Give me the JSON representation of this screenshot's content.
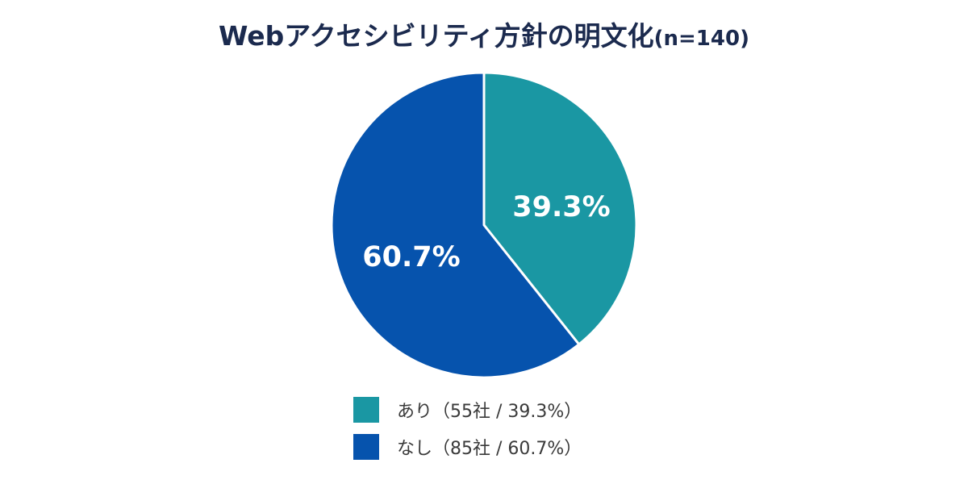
{
  "chart_data": {
    "type": "pie",
    "title": "Webアクセシビリティ方針の明文化",
    "subtitle": "(n=140)",
    "slices": [
      {
        "label": "あり",
        "count": 55,
        "count_unit": "社",
        "value": 39.3,
        "value_label": "39.3%",
        "legend_label": "あり（55社 / 39.3%）",
        "color": "#1a97a3"
      },
      {
        "label": "なし",
        "count": 85,
        "count_unit": "社",
        "value": 60.7,
        "value_label": "60.7%",
        "legend_label": "なし（85社 / 60.7%）",
        "color": "#0653ad"
      }
    ],
    "legend_position": "bottom",
    "start_angle": "12 o'clock",
    "direction": "clockwise"
  }
}
